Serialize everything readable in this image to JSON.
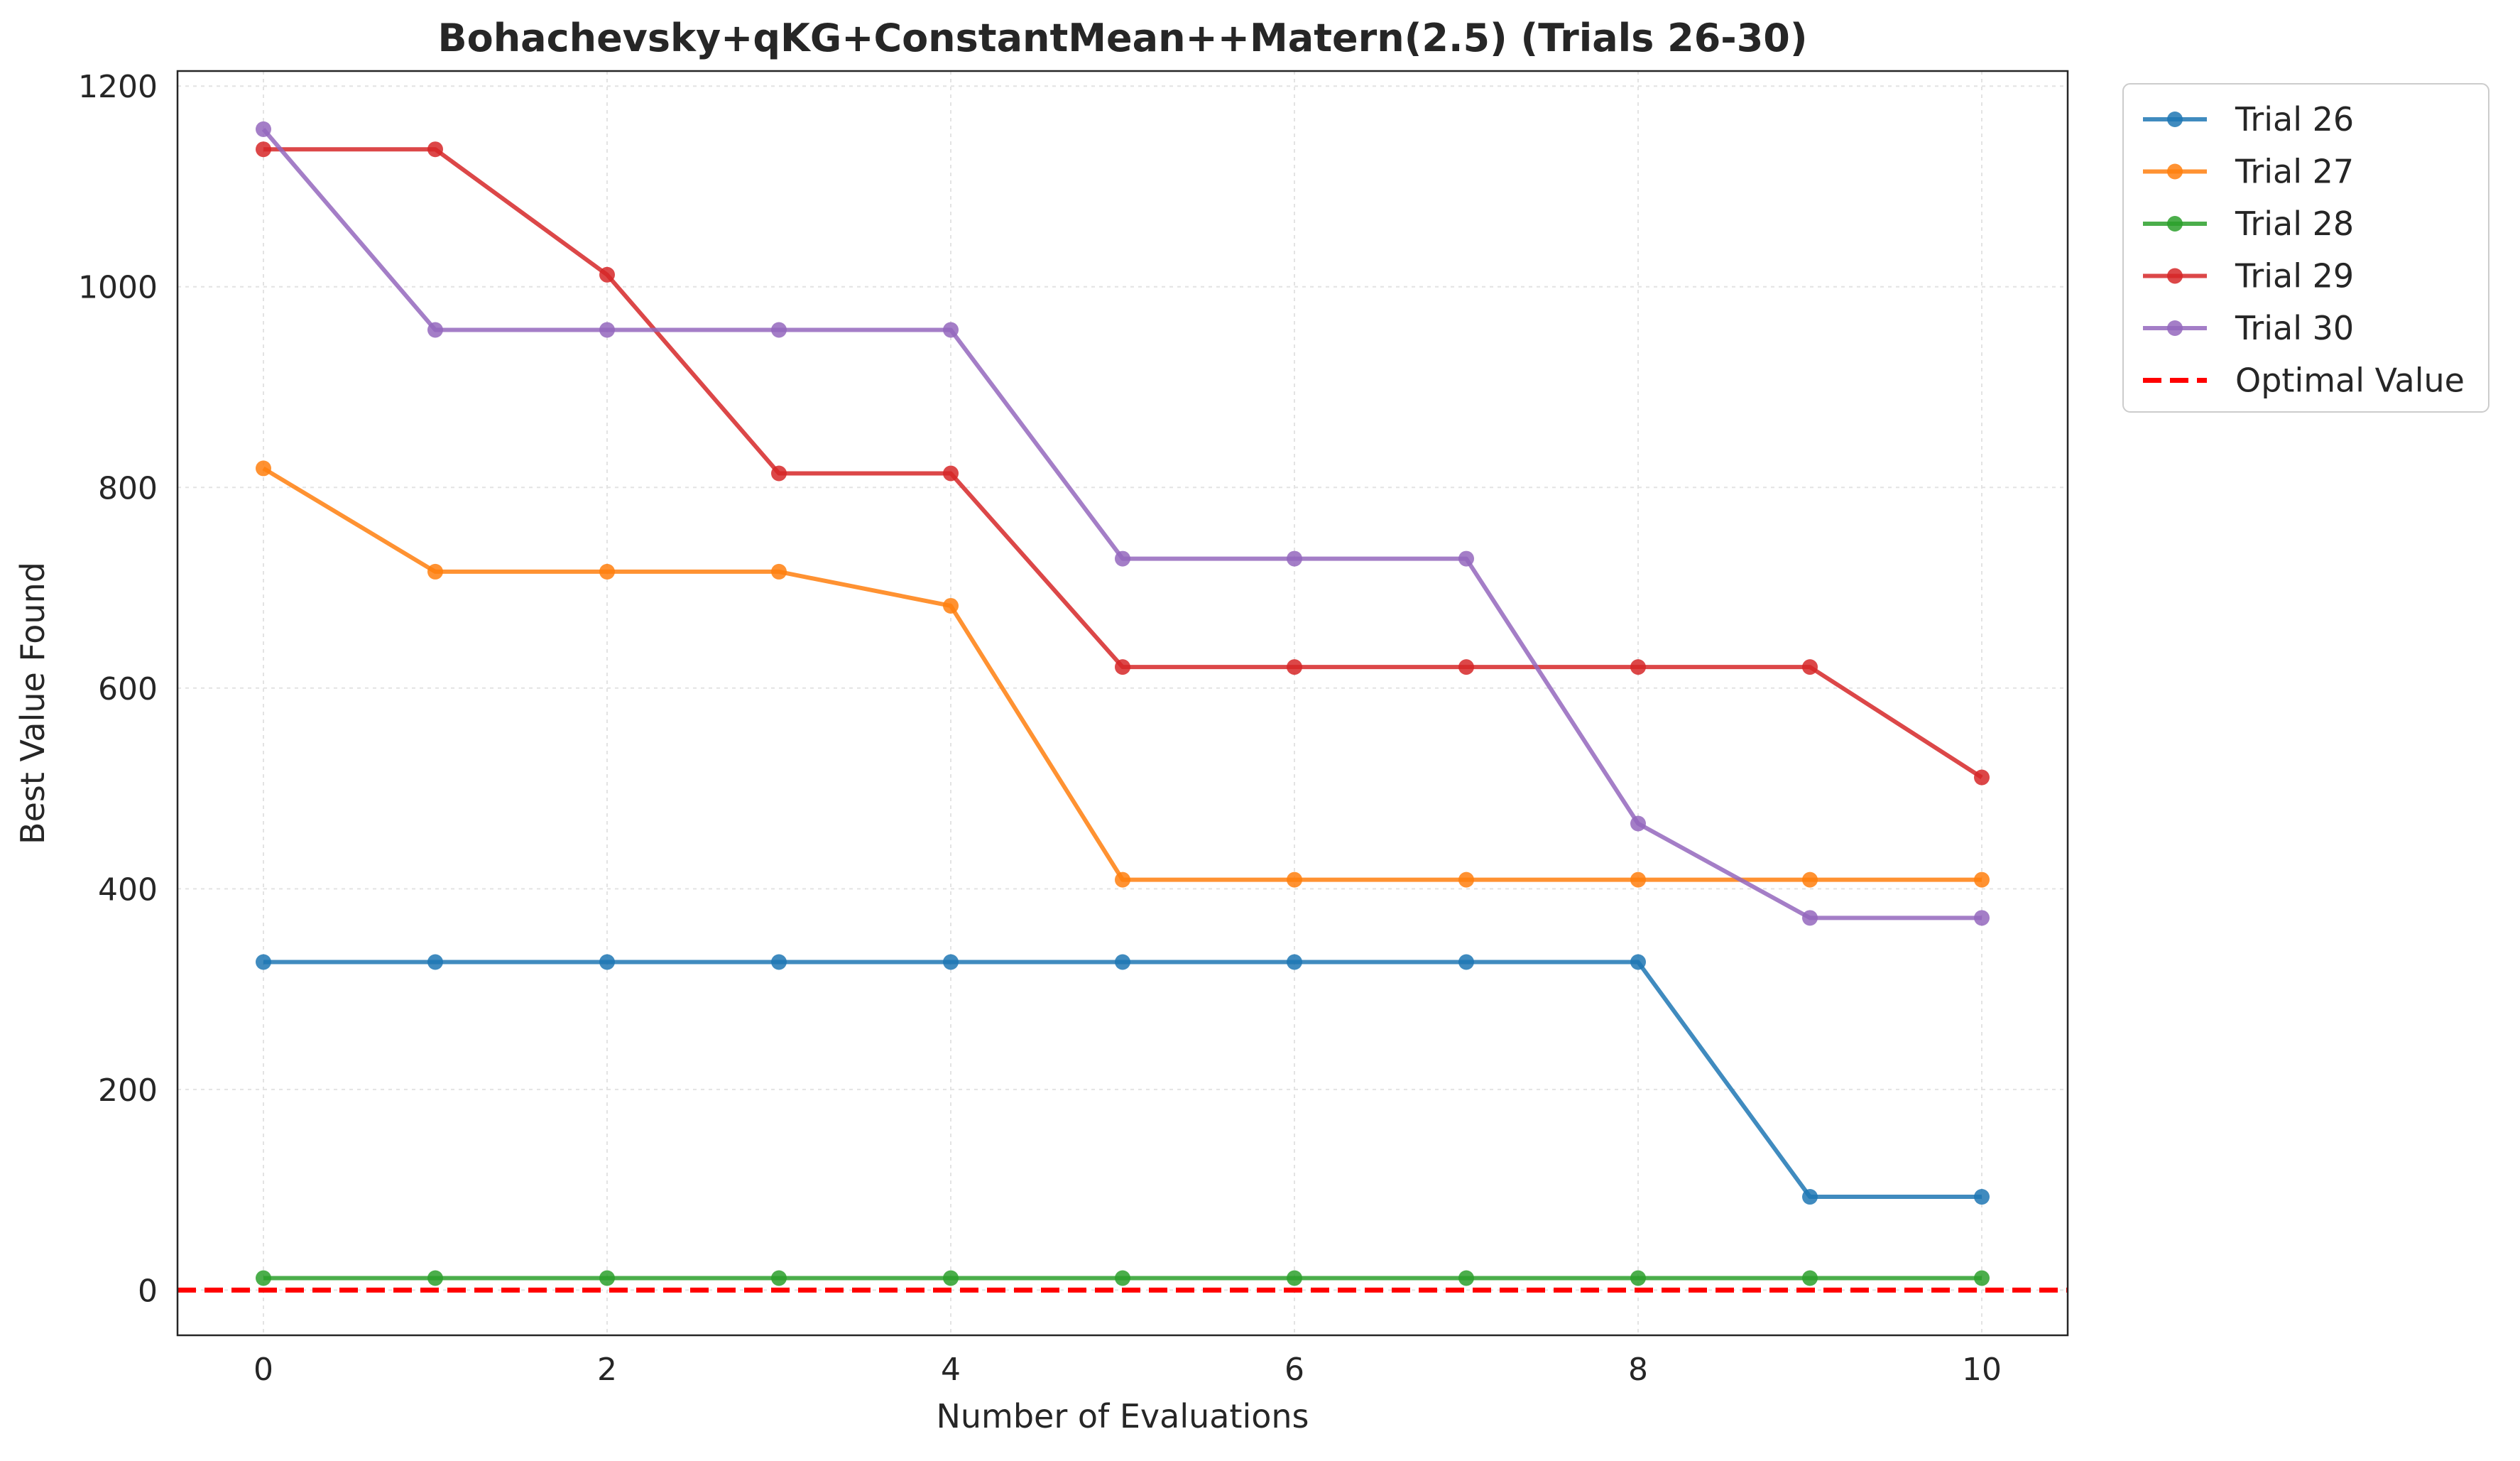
{
  "chart_data": {
    "type": "line",
    "title": "Bohachevsky+qKG+ConstantMean++Matern(2.5) (Trials 26-30)",
    "xlabel": "Number of Evaluations",
    "ylabel": "Best Value Found",
    "xlim": [
      -0.5,
      10.5
    ],
    "ylim": [
      -45,
      1215
    ],
    "xticks": [
      0,
      2,
      4,
      6,
      8,
      10
    ],
    "yticks": [
      0,
      200,
      400,
      600,
      800,
      1000,
      1200
    ],
    "xtick_labels": [
      "0",
      "2",
      "4",
      "6",
      "8",
      "10"
    ],
    "ytick_labels": [
      "0",
      "200",
      "400",
      "600",
      "800",
      "1000",
      "1200"
    ],
    "grid": true,
    "legend_position": "outside-top-right",
    "x": [
      0,
      1,
      2,
      3,
      4,
      5,
      6,
      7,
      8,
      9,
      10
    ],
    "series": [
      {
        "name": "Trial 26",
        "color": "#1f77b4",
        "values": [
          327,
          327,
          327,
          327,
          327,
          327,
          327,
          327,
          327,
          93,
          93
        ]
      },
      {
        "name": "Trial 27",
        "color": "#ff7f0e",
        "values": [
          819,
          716,
          716,
          716,
          682,
          409,
          409,
          409,
          409,
          409,
          409
        ]
      },
      {
        "name": "Trial 28",
        "color": "#2ca02c",
        "values": [
          12,
          12,
          12,
          12,
          12,
          12,
          12,
          12,
          12,
          12,
          12
        ]
      },
      {
        "name": "Trial 29",
        "color": "#d62728",
        "values": [
          1137,
          1137,
          1012,
          814,
          814,
          621,
          621,
          621,
          621,
          621,
          511
        ]
      },
      {
        "name": "Trial 30",
        "color": "#9467bd",
        "values": [
          1157,
          957,
          957,
          957,
          957,
          729,
          729,
          729,
          465,
          371,
          371
        ]
      }
    ],
    "reference_line": {
      "name": "Optimal Value",
      "value": 0,
      "color": "#ff0000",
      "style": "dashed"
    }
  }
}
